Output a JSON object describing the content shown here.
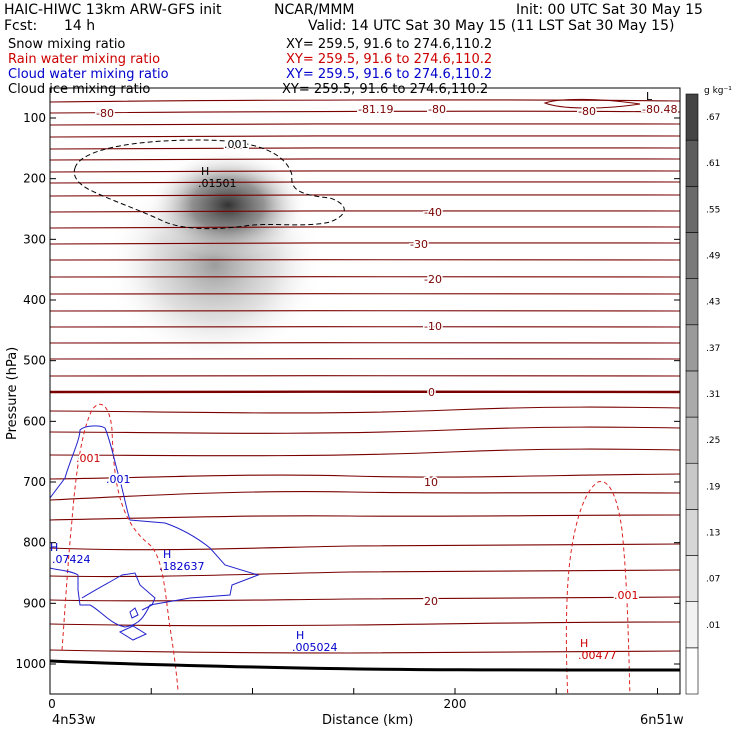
{
  "header": {
    "title_left": "HAIC-HIWC 13km ARW-GFS init",
    "title_mid": "NCAR/MMM",
    "init": "Init: 00 UTC Sat 30 May 15",
    "fcst_label": "Fcst:",
    "fcst_value": "14 h",
    "valid": "Valid: 14 UTC Sat 30 May 15 (11 LST Sat 30 May 15)"
  },
  "legend": [
    {
      "label": "Snow mixing ratio",
      "xy": "XY= 259.5, 91.6 to 274.6,110.2",
      "color": "#000000"
    },
    {
      "label": "Rain water mixing ratio",
      "xy": "XY= 259.5, 91.6 to 274.6,110.2",
      "color": "#cc0000"
    },
    {
      "label": "Cloud water mixing ratio",
      "xy": "XY= 259.5, 91.6 to 274.6,110.2",
      "color": "#0000cc"
    },
    {
      "label": "Cloud ice mixing ratio",
      "xy": "XY= 259.5, 91.6 to 274.6,110.2",
      "color": "#000000"
    }
  ],
  "chart_data": {
    "type": "cross-section",
    "xlabel": "Distance (km)",
    "ylabel": "Pressure (hPa)",
    "x_range": [
      0,
      310
    ],
    "y_range": [
      50,
      1020
    ],
    "y_ticks": [
      100,
      200,
      300,
      400,
      500,
      600,
      700,
      800,
      900,
      1000
    ],
    "x_ticks": [
      0,
      200
    ],
    "x_end_left": "4n53w",
    "x_end_right": "6n51w",
    "colorbar": {
      "unit": "g kg⁻¹",
      "levels": [
        ".01",
        ".07",
        ".13",
        ".19",
        ".25",
        ".31",
        ".37",
        ".43",
        ".49",
        ".55",
        ".61",
        ".67"
      ],
      "colors": [
        "#ffffff",
        "#f2f2f2",
        "#e4e4e4",
        "#d6d6d6",
        "#c8c8c8",
        "#b9b9b9",
        "#aaaaaa",
        "#9a9a9a",
        "#8a8a8a",
        "#7a7a7a",
        "#6a6a6a",
        "#5c5c5c",
        "#444444"
      ]
    },
    "temperature_labels": [
      "-80",
      "-81.19",
      "-80",
      "-80",
      "-80.48",
      "-40",
      "-30",
      "-20",
      "-10",
      "0",
      "10",
      "20"
    ],
    "field_labels": [
      {
        "text": ".001",
        "color": "#000000"
      },
      {
        "text": "H",
        "color": "#000000"
      },
      {
        "text": ".01501",
        "color": "#000000"
      },
      {
        "text": "L",
        "color": "#000000"
      },
      {
        "text": ".001",
        "color": "#cc0000"
      },
      {
        "text": ".001",
        "color": "#0000cc"
      },
      {
        "text": "H",
        "color": "#0000cc"
      },
      {
        "text": ".07424",
        "color": "#0000cc"
      },
      {
        "text": "H",
        "color": "#0000cc"
      },
      {
        "text": ".182637",
        "color": "#0000cc"
      },
      {
        "text": "H",
        "color": "#0000cc"
      },
      {
        "text": ".005024",
        "color": "#0000cc"
      },
      {
        "text": ".001",
        "color": "#cc0000"
      },
      {
        "text": "H",
        "color": "#cc0000"
      },
      {
        "text": ".00477",
        "color": "#cc0000"
      }
    ],
    "snow_max": ".01501",
    "cloud_water_max": ".182637",
    "rain_max": ".00477"
  }
}
